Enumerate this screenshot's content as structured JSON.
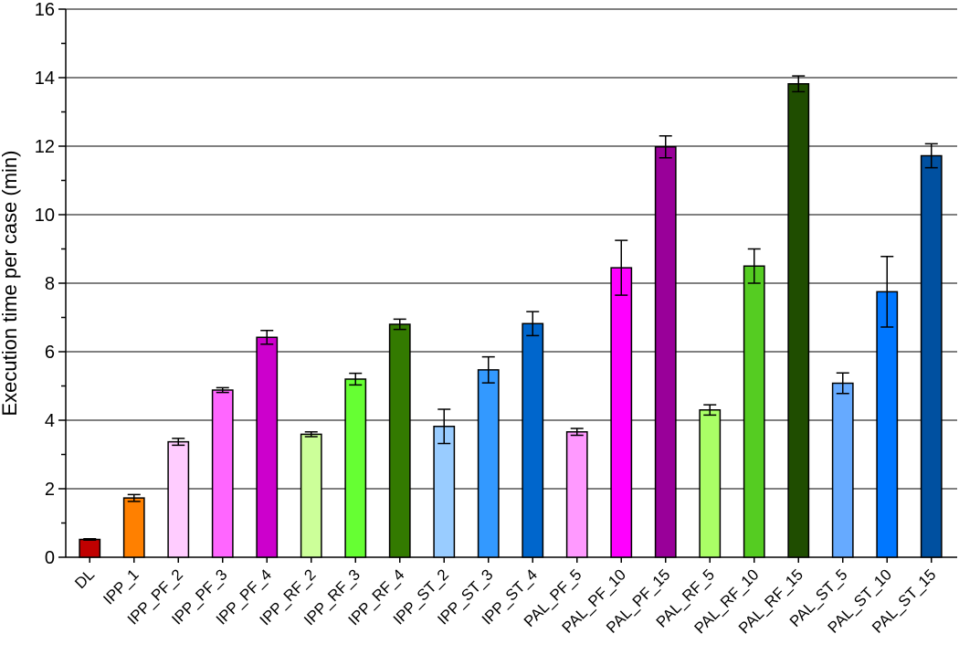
{
  "chart_data": {
    "type": "bar",
    "y_label": "Execution time per case  (min)",
    "categories": [
      "DL",
      "IPP_1",
      "IPP_PF_2",
      "IPP_PF_3",
      "IPP_PF_4",
      "IPP_RF_2",
      "IPP_RF_3",
      "IPP_RF_4",
      "IPP_ST_2",
      "IPP_ST_3",
      "IPP_ST_4",
      "PAL_PF_5",
      "PAL_PF_10",
      "PAL_PF_15",
      "PAL_RF_5",
      "PAL_RF_10",
      "PAL_RF_15",
      "PAL_ST_5",
      "PAL_ST_10",
      "PAL_ST_15"
    ],
    "values": [
      0.52,
      1.73,
      3.37,
      4.88,
      6.42,
      3.59,
      5.2,
      6.8,
      3.82,
      5.47,
      6.82,
      3.66,
      8.45,
      11.98,
      4.3,
      8.5,
      13.82,
      5.08,
      7.75,
      11.72
    ],
    "errors": [
      0.02,
      0.1,
      0.1,
      0.07,
      0.2,
      0.07,
      0.17,
      0.15,
      0.5,
      0.38,
      0.35,
      0.1,
      0.8,
      0.32,
      0.15,
      0.5,
      0.23,
      0.3,
      1.03,
      0.35
    ],
    "colors": [
      "#c00000",
      "#ff8000",
      "#ffccff",
      "#ff66ff",
      "#cc00cc",
      "#ccff99",
      "#66ff33",
      "#337a00",
      "#99ccff",
      "#3399ff",
      "#0066cc",
      "#ff99ff",
      "#ff00ff",
      "#990099",
      "#aaff66",
      "#55cc22",
      "#1f4d00",
      "#66aaff",
      "#0077ff",
      "#0050a0"
    ],
    "ylim": [
      0,
      16
    ],
    "yticks": [
      0,
      2,
      4,
      6,
      8,
      10,
      12,
      14,
      16
    ],
    "grid": true
  }
}
